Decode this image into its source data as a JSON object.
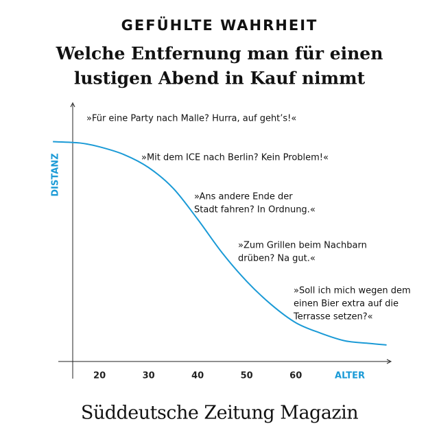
{
  "chart_data": {
    "type": "line",
    "header": "GEFÜHLTE WAHRHEIT",
    "title": [
      "Welche Entfernung man für einen",
      "lustigen Abend in Kauf nimmt"
    ],
    "y_label": "DISTANZ",
    "x_label": "ALTER",
    "xlim": [
      11.6,
      79.4
    ],
    "ylim": [
      0,
      100
    ],
    "xticks": [
      20,
      30,
      40,
      50,
      60
    ],
    "series": [
      {
        "color": "#1a9ad6",
        "x": [
          10.5,
          16,
          20,
          25,
          30,
          35,
          40,
          45,
          50,
          55,
          60,
          65,
          70,
          75,
          78.5
        ],
        "values": [
          85,
          84.5,
          83,
          80,
          75,
          67,
          55,
          42,
          31,
          22,
          15,
          11,
          8,
          7,
          6.4
        ]
      }
    ],
    "annotations": [
      [
        "»Für eine Party nach Malle? Hurra, auf geht’s!«"
      ],
      [
        "»Mit dem ICE nach Berlin? Kein Problem!«"
      ],
      [
        "»Ans andere Ende der",
        "Stadt fahren? In Ordnung.«"
      ],
      [
        "»Zum Grillen beim Nachbarn",
        "drüben? Na gut.«"
      ],
      [
        "»Soll ich mich wegen dem",
        "einen Bier extra auf die",
        "Terrasse setzen?«"
      ]
    ],
    "footer": "Süddeutsche Zeitung Magazin"
  }
}
